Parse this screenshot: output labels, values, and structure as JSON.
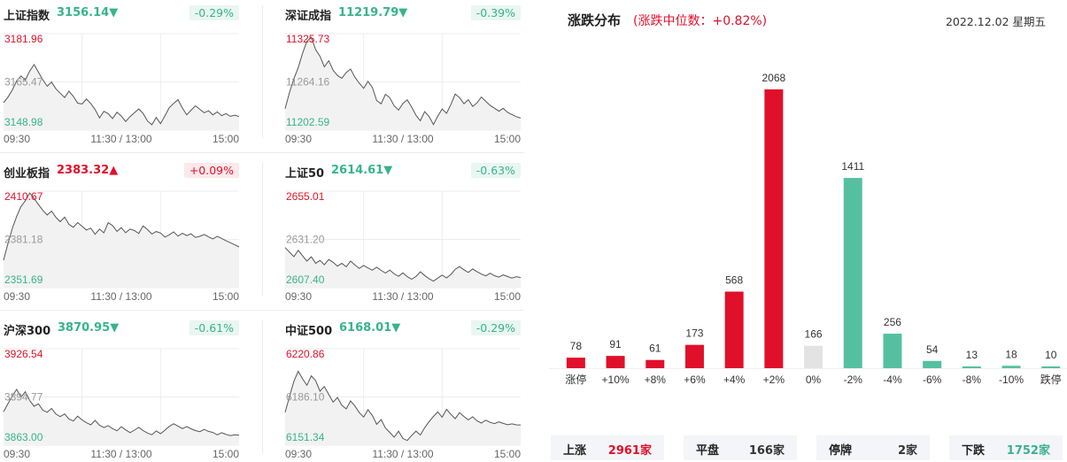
{
  "indices": [
    {
      "name": "上证指数",
      "price": "3156.14",
      "dir": "down",
      "arrow": "▼",
      "change": "-0.29%",
      "y_top": "3181.96",
      "y_mid": "3165.47",
      "y_bot": "3148.98",
      "top_color": "red",
      "bot_color": "green",
      "x_ticks": [
        "09:30",
        "11:30 / 13:00",
        "15:00"
      ],
      "chart_data": {
        "type": "line",
        "ylim": [
          3148.98,
          3181.96
        ],
        "values": [
          3158.4,
          3160.2,
          3162.7,
          3165.8,
          3167.5,
          3166.1,
          3169.2,
          3171.4,
          3168.8,
          3166.2,
          3164.0,
          3165.4,
          3163.1,
          3161.6,
          3160.1,
          3162.3,
          3160.5,
          3158.2,
          3157.9,
          3159.6,
          3158.1,
          3156.0,
          3153.2,
          3155.4,
          3154.6,
          3152.9,
          3155.1,
          3153.8,
          3151.9,
          3153.6,
          3154.9,
          3156.2,
          3154.7,
          3152.1,
          3150.8,
          3153.3,
          3151.2,
          3153.9,
          3156.7,
          3158.1,
          3159.4,
          3156.5,
          3154.2,
          3155.8,
          3157.3,
          3156.1,
          3154.9,
          3155.6,
          3154.2,
          3155.2,
          3153.9,
          3154.6,
          3153.7,
          3154.1,
          3153.6
        ]
      }
    },
    {
      "name": "深证成指",
      "price": "11219.79",
      "dir": "down",
      "arrow": "▼",
      "change": "-0.39%",
      "y_top": "11325.73",
      "y_mid": "11264.16",
      "y_bot": "11202.59",
      "top_color": "red",
      "bot_color": "green",
      "x_ticks": [
        "09:30",
        "11:30 / 13:00",
        "15:00"
      ],
      "chart_data": {
        "type": "line",
        "ylim": [
          11202.59,
          11325.73
        ],
        "values": [
          11230.0,
          11250.5,
          11268.2,
          11282.4,
          11300.6,
          11315.9,
          11321.1,
          11305.2,
          11296.8,
          11283.4,
          11291.2,
          11279.1,
          11272.3,
          11268.8,
          11276.0,
          11280.5,
          11270.1,
          11262.5,
          11255.9,
          11264.8,
          11257.2,
          11240.3,
          11236.1,
          11248.4,
          11243.9,
          11233.7,
          11228.1,
          11236.5,
          11241.2,
          11232.0,
          11221.4,
          11214.6,
          11226.2,
          11219.9,
          11209.7,
          11220.3,
          11229.5,
          11224.1,
          11235.2,
          11248.7,
          11244.0,
          11236.2,
          11241.5,
          11232.9,
          11237.4,
          11244.8,
          11239.3,
          11234.1,
          11230.6,
          11226.8,
          11230.4,
          11225.2,
          11222.5,
          11219.8,
          11217.9
        ]
      }
    },
    {
      "name": "创业板指",
      "price": "2383.32",
      "dir": "up",
      "arrow": "▲",
      "change": "+0.09%",
      "y_top": "2410.67",
      "y_mid": "2381.18",
      "y_bot": "2351.69",
      "top_color": "red",
      "bot_color": "green",
      "x_ticks": [
        "09:30",
        "11:30 / 13:00",
        "15:00"
      ],
      "chart_data": {
        "type": "line",
        "ylim": [
          2351.69,
          2410.67
        ],
        "values": [
          2368.4,
          2378.5,
          2387.9,
          2395.2,
          2401.3,
          2404.8,
          2409.6,
          2406.2,
          2402.5,
          2399.0,
          2396.1,
          2398.5,
          2394.7,
          2392.0,
          2394.8,
          2390.4,
          2388.6,
          2391.5,
          2389.2,
          2386.9,
          2388.1,
          2384.3,
          2387.5,
          2385.2,
          2391.4,
          2389.7,
          2386.1,
          2388.4,
          2385.3,
          2387.5,
          2386.6,
          2384.8,
          2389.4,
          2387.2,
          2384.5,
          2386.0,
          2385.1,
          2382.6,
          2384.0,
          2385.8,
          2383.2,
          2384.9,
          2383.5,
          2384.6,
          2382.4,
          2383.1,
          2384.2,
          2382.7,
          2381.5,
          2383.0,
          2381.8,
          2380.4,
          2379.2,
          2377.9,
          2376.6
        ]
      }
    },
    {
      "name": "上证50",
      "price": "2614.61",
      "dir": "down",
      "arrow": "▼",
      "change": "-0.63%",
      "y_top": "2655.01",
      "y_mid": "2631.20",
      "y_bot": "2607.40",
      "top_color": "red",
      "bot_color": "green",
      "x_ticks": [
        "09:30",
        "11:30 / 13:00",
        "15:00"
      ],
      "chart_data": {
        "type": "line",
        "ylim": [
          2607.4,
          2655.01
        ],
        "values": [
          2627.2,
          2624.9,
          2622.7,
          2625.8,
          2623.1,
          2620.5,
          2622.6,
          2619.4,
          2620.8,
          2618.7,
          2621.3,
          2619.9,
          2618.0,
          2619.4,
          2617.7,
          2620.5,
          2618.6,
          2616.9,
          2618.3,
          2617.1,
          2616.0,
          2617.5,
          2615.9,
          2614.6,
          2616.1,
          2614.2,
          2613.0,
          2614.7,
          2612.8,
          2611.6,
          2612.9,
          2615.2,
          2613.4,
          2611.8,
          2610.6,
          2612.1,
          2613.6,
          2612.2,
          2613.9,
          2616.5,
          2617.8,
          2616.2,
          2614.9,
          2616.6,
          2615.3,
          2614.1,
          2613.2,
          2614.5,
          2613.3,
          2612.6,
          2613.7,
          2612.9,
          2612.1,
          2612.8,
          2612.4
        ]
      }
    },
    {
      "name": "沪深300",
      "price": "3870.95",
      "dir": "down",
      "arrow": "▼",
      "change": "-0.61%",
      "y_top": "3926.54",
      "y_mid": "3894.77",
      "y_bot": "3863.00",
      "top_color": "red",
      "bot_color": "green",
      "x_ticks": [
        "09:30",
        "11:30 / 13:00",
        "15:00"
      ],
      "chart_data": {
        "type": "line",
        "ylim": [
          3863.0,
          3926.54
        ],
        "values": [
          3885.0,
          3890.2,
          3895.5,
          3899.8,
          3894.6,
          3898.2,
          3892.4,
          3888.6,
          3890.3,
          3886.1,
          3884.7,
          3887.2,
          3883.5,
          3881.8,
          3883.6,
          3880.2,
          3878.9,
          3882.1,
          3879.6,
          3877.8,
          3876.4,
          3879.3,
          3876.1,
          3874.6,
          3875.9,
          3873.9,
          3872.5,
          3875.2,
          3873.1,
          3871.3,
          3872.9,
          3874.8,
          3872.6,
          3871.0,
          3869.9,
          3872.4,
          3870.6,
          3872.9,
          3875.4,
          3877.1,
          3875.6,
          3873.9,
          3875.3,
          3873.8,
          3872.6,
          3871.9,
          3873.4,
          3872.1,
          3871.4,
          3869.8,
          3871.2,
          3870.1,
          3869.3,
          3869.9,
          3869.5
        ]
      }
    },
    {
      "name": "中证500",
      "price": "6168.01",
      "dir": "down",
      "arrow": "▼",
      "change": "-0.29%",
      "y_top": "6220.86",
      "y_mid": "6186.10",
      "y_bot": "6151.34",
      "top_color": "red",
      "bot_color": "green",
      "x_ticks": [
        "09:30",
        "11:30 / 13:00",
        "15:00"
      ],
      "chart_data": {
        "type": "line",
        "ylim": [
          6151.34,
          6220.86
        ],
        "values": [
          6175.0,
          6186.3,
          6197.4,
          6204.6,
          6199.2,
          6194.5,
          6201.3,
          6197.8,
          6190.2,
          6193.6,
          6187.9,
          6182.4,
          6185.7,
          6180.1,
          6177.5,
          6183.2,
          6179.6,
          6174.8,
          6171.6,
          6176.9,
          6172.8,
          6166.4,
          6169.8,
          6163.7,
          6160.5,
          6157.1,
          6161.4,
          6156.2,
          6154.7,
          6158.3,
          6161.5,
          6158.7,
          6163.9,
          6168.4,
          6172.1,
          6175.3,
          6171.5,
          6177.2,
          6173.6,
          6170.4,
          6174.8,
          6172.0,
          6169.6,
          6171.8,
          6168.9,
          6167.3,
          6169.4,
          6167.8,
          6166.9,
          6168.2,
          6167.0,
          6166.1,
          6166.7,
          6166.0,
          6165.8
        ]
      }
    }
  ],
  "distribution": {
    "title": "涨跌分布",
    "median_label": "(涨跌中位数：+0.82%)",
    "date": "2022.12.02 星期五",
    "colors": {
      "up": "#e0102a",
      "flat": "#e3e3e3",
      "down": "#55c0a0"
    },
    "chart_data": {
      "type": "bar",
      "categories": [
        "涨停",
        "+10%",
        "+8%",
        "+6%",
        "+4%",
        "+2%",
        "0%",
        "-2%",
        "-4%",
        "-6%",
        "-8%",
        "-10%",
        "跌停"
      ],
      "values": [
        78,
        91,
        61,
        173,
        568,
        2068,
        166,
        1411,
        256,
        54,
        13,
        18,
        10
      ],
      "kinds": [
        "up",
        "up",
        "up",
        "up",
        "up",
        "up",
        "flat",
        "down",
        "down",
        "down",
        "down",
        "down",
        "down"
      ],
      "ylim": [
        0,
        2068
      ]
    }
  },
  "footer": [
    {
      "label": "上涨",
      "value": "2961",
      "unit": "家",
      "color": "#e0102a"
    },
    {
      "label": "平盘",
      "value": "166",
      "unit": "家",
      "color": "#333333"
    },
    {
      "label": "停牌",
      "value": "2",
      "unit": "家",
      "color": "#333333"
    },
    {
      "label": "下跌",
      "value": "1752",
      "unit": "家",
      "color": "#37b48a"
    }
  ]
}
